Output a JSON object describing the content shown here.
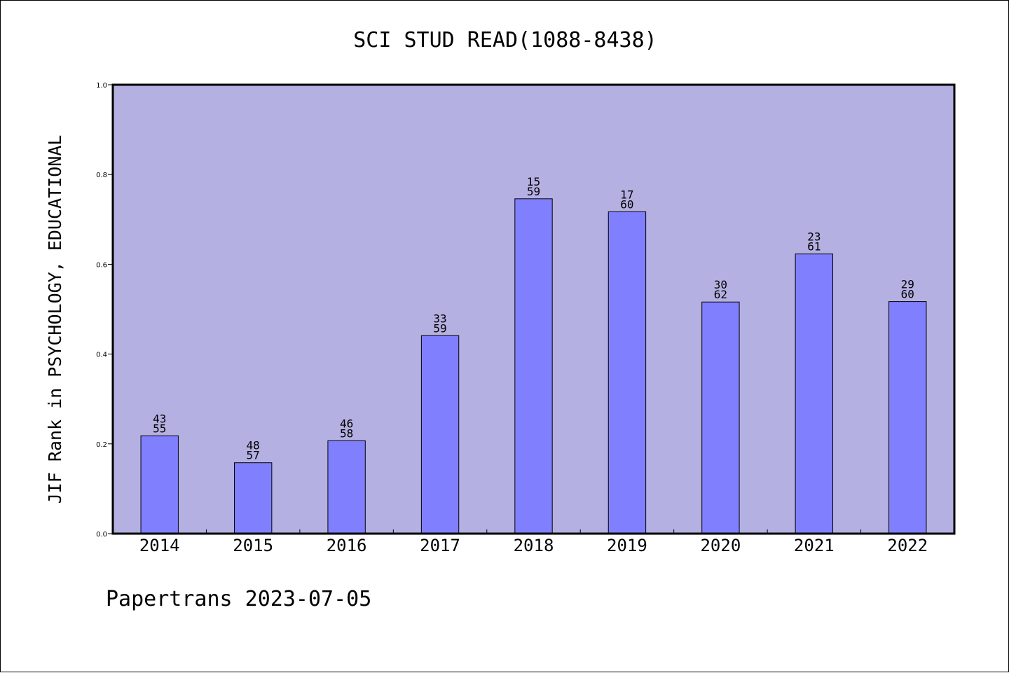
{
  "chart_data": {
    "type": "bar",
    "title": "SCI STUD READ(1088-8438)",
    "xlabel": "",
    "ylabel": "JIF Rank in PSYCHOLOGY, EDUCATIONAL",
    "ylim": [
      0.0,
      1.0
    ],
    "yticks": [
      "0.0",
      "0.2",
      "0.4",
      "0.6",
      "0.8",
      "1.0"
    ],
    "categories": [
      "2014",
      "2015",
      "2016",
      "2017",
      "2018",
      "2019",
      "2020",
      "2021",
      "2022"
    ],
    "values": [
      0.218,
      0.158,
      0.207,
      0.441,
      0.746,
      0.717,
      0.516,
      0.623,
      0.517
    ],
    "bar_labels": [
      [
        "43",
        "55"
      ],
      [
        "48",
        "57"
      ],
      [
        "46",
        "58"
      ],
      [
        "33",
        "59"
      ],
      [
        "15",
        "59"
      ],
      [
        "17",
        "60"
      ],
      [
        "30",
        "62"
      ],
      [
        "23",
        "61"
      ],
      [
        "29",
        "60"
      ]
    ],
    "grid": false,
    "colors": {
      "plot_background": "#B5B0E2",
      "bar_fill": "#8080FF",
      "bar_edge": "#000000"
    }
  },
  "footer": "Papertrans 2023-07-05"
}
